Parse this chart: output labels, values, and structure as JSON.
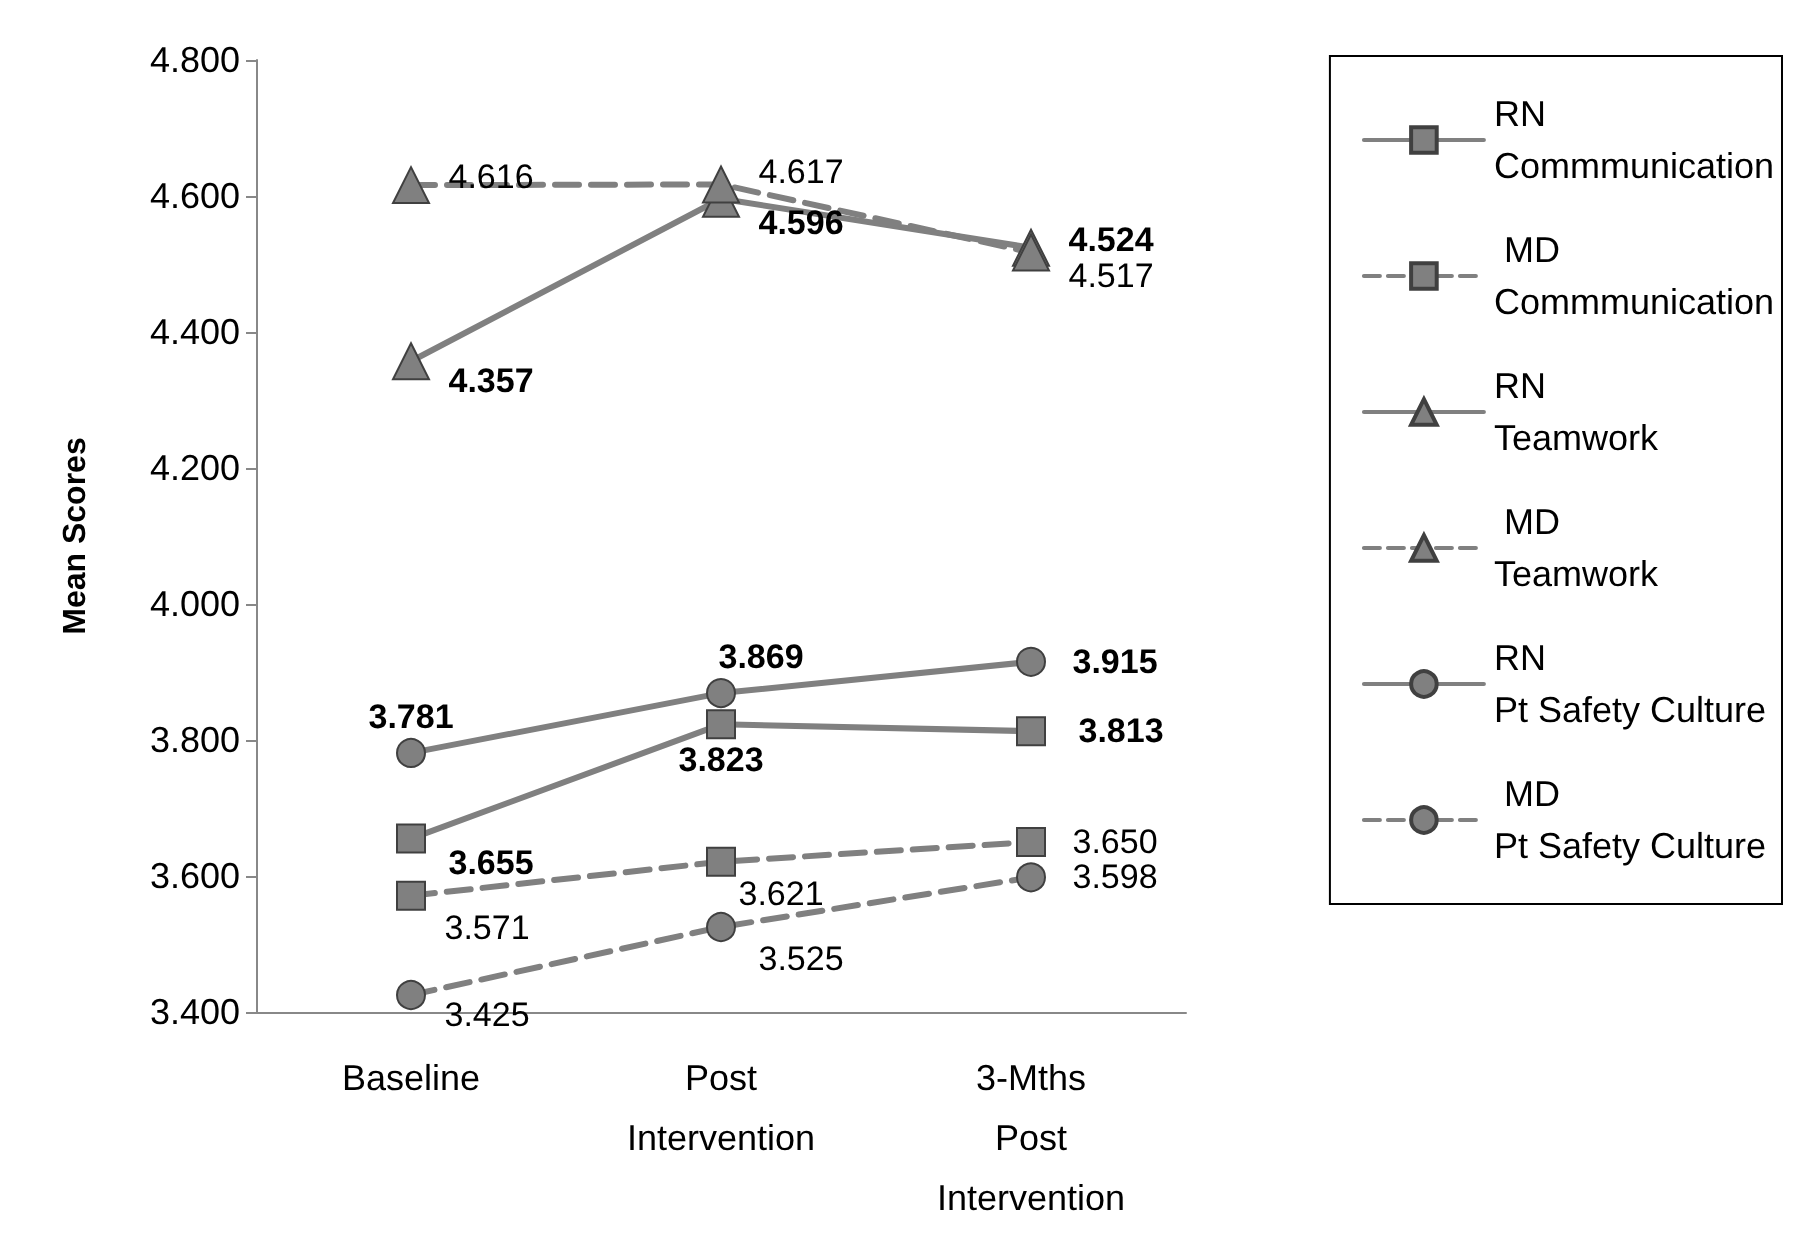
{
  "chart_data": {
    "type": "line",
    "ylabel": "Mean Scores",
    "categories": [
      "Baseline",
      "Post\nIntervention",
      "3-Mths\nPost\nIntervention"
    ],
    "series": [
      {
        "name": "RN\nCommmunication",
        "color": "#808080",
        "marker": "square",
        "line_style": "solid",
        "values": [
          3.655,
          3.823,
          3.813
        ]
      },
      {
        "name": " MD\nCommmunication",
        "color": "#808080",
        "marker": "square",
        "line_style": "dashed",
        "values": [
          3.571,
          3.621,
          3.65
        ],
        "value_labels": [
          "3.571",
          "3.621",
          "3.650"
        ]
      },
      {
        "name": "RN\nTeamwork",
        "color": "#808080",
        "marker": "triangle",
        "line_style": "solid",
        "values": [
          4.357,
          4.596,
          4.524
        ]
      },
      {
        "name": " MD\nTeamwork",
        "color": "#808080",
        "marker": "triangle",
        "line_style": "dashed",
        "values": [
          4.616,
          4.617,
          4.517
        ]
      },
      {
        "name": "RN\nPt Safety Culture",
        "color": "#808080",
        "marker": "circle",
        "line_style": "solid",
        "values": [
          3.781,
          3.869,
          3.915
        ]
      },
      {
        "name": " MD\nPt Safety Culture",
        "color": "#808080",
        "marker": "circle",
        "line_style": "dashed",
        "values": [
          3.425,
          3.525,
          3.598
        ]
      }
    ],
    "ylim": [
      3.4,
      4.8
    ],
    "yticks": [
      {
        "value": 3.4,
        "label": "3.400"
      },
      {
        "value": 3.6,
        "label": "3.600"
      },
      {
        "value": 3.8,
        "label": "3.800"
      },
      {
        "value": 4.0,
        "label": "4.000"
      },
      {
        "value": 4.2,
        "label": "4.200"
      },
      {
        "value": 4.4,
        "label": "4.400"
      },
      {
        "value": 4.6,
        "label": "4.600"
      },
      {
        "value": 4.8,
        "label": "4.800"
      }
    ],
    "grid": false,
    "legend": "right",
    "data_labels": true
  }
}
